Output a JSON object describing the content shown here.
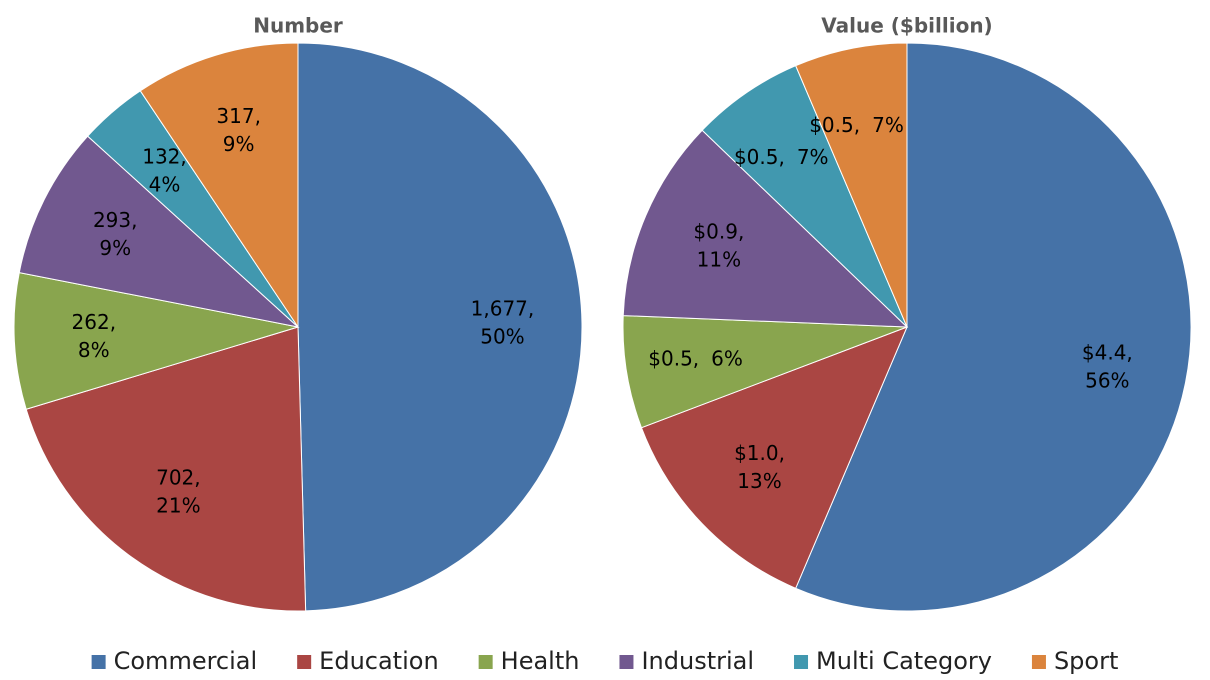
{
  "chart_data": [
    {
      "type": "pie",
      "title": "Number",
      "categories": [
        "Commercial",
        "Education",
        "Health",
        "Industrial",
        "Multi Category",
        "Sport"
      ],
      "values": [
        1677,
        702,
        262,
        293,
        132,
        317
      ],
      "value_labels": [
        "1,677,",
        "702,",
        "262,",
        "293,",
        "132,",
        "317,"
      ],
      "percent_labels": [
        "50%",
        "21%",
        "8%",
        "9%",
        "4%",
        "9%"
      ],
      "colors": [
        "#4572a7",
        "#aa4643",
        "#89a54e",
        "#71588f",
        "#4198af",
        "#db843d"
      ],
      "legend": "bottom"
    },
    {
      "type": "pie",
      "title": "Value ($billion)",
      "categories": [
        "Commercial",
        "Education",
        "Health",
        "Industrial",
        "Multi Category",
        "Sport"
      ],
      "values": [
        4.4,
        1.0,
        0.5,
        0.9,
        0.5,
        0.5
      ],
      "value_labels": [
        "$4.4,",
        "$1.0,",
        "$0.5,",
        "$0.9,",
        "$0.5,",
        "$0.5,"
      ],
      "percent_labels": [
        "56%",
        "13%",
        "6%",
        "11%",
        "7%",
        "7%"
      ],
      "colors": [
        "#4572a7",
        "#aa4643",
        "#89a54e",
        "#71588f",
        "#4198af",
        "#db843d"
      ],
      "legend": "bottom"
    }
  ]
}
